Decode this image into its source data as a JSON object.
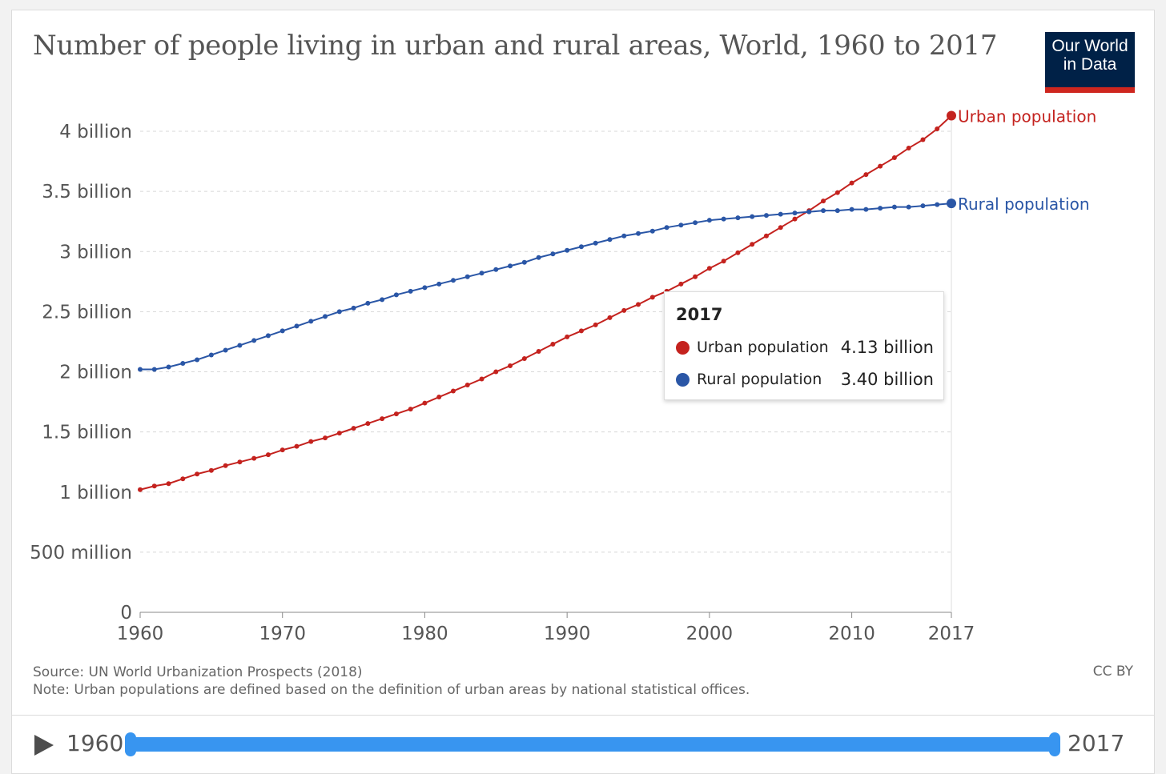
{
  "title": "Number of people living in urban and rural areas, World, 1960 to 2017",
  "logo": {
    "line1": "Our World",
    "line2": "in Data"
  },
  "colors": {
    "urban": "#c4221e",
    "rural": "#2a56a6",
    "grid": "#d8d8d8",
    "axis": "#555555",
    "accent": "#3895f0"
  },
  "chart_data": {
    "type": "line",
    "title": "Number of people living in urban and rural areas, World, 1960 to 2017",
    "xlabel": "",
    "ylabel": "",
    "xlim": [
      1960,
      2017
    ],
    "ylim": [
      0,
      4000000000
    ],
    "x_ticks": [
      1960,
      1970,
      1980,
      1990,
      2000,
      2010,
      2017
    ],
    "y_ticks": [
      {
        "value": 0,
        "label": "0"
      },
      {
        "value": 500000000,
        "label": "500 million"
      },
      {
        "value": 1000000000,
        "label": "1 billion"
      },
      {
        "value": 1500000000,
        "label": "1.5 billion"
      },
      {
        "value": 2000000000,
        "label": "2 billion"
      },
      {
        "value": 2500000000,
        "label": "2.5 billion"
      },
      {
        "value": 3000000000,
        "label": "3 billion"
      },
      {
        "value": 3500000000,
        "label": "3.5 billion"
      },
      {
        "value": 4000000000,
        "label": "4 billion"
      }
    ],
    "grid": true,
    "x": [
      1960,
      1961,
      1962,
      1963,
      1964,
      1965,
      1966,
      1967,
      1968,
      1969,
      1970,
      1971,
      1972,
      1973,
      1974,
      1975,
      1976,
      1977,
      1978,
      1979,
      1980,
      1981,
      1982,
      1983,
      1984,
      1985,
      1986,
      1987,
      1988,
      1989,
      1990,
      1991,
      1992,
      1993,
      1994,
      1995,
      1996,
      1997,
      1998,
      1999,
      2000,
      2001,
      2002,
      2003,
      2004,
      2005,
      2006,
      2007,
      2008,
      2009,
      2010,
      2011,
      2012,
      2013,
      2014,
      2015,
      2016,
      2017
    ],
    "series": [
      {
        "name": "Urban population",
        "color": "#c4221e",
        "values": [
          1.02,
          1.05,
          1.07,
          1.11,
          1.15,
          1.18,
          1.22,
          1.25,
          1.28,
          1.31,
          1.35,
          1.38,
          1.42,
          1.45,
          1.49,
          1.53,
          1.57,
          1.61,
          1.65,
          1.69,
          1.74,
          1.79,
          1.84,
          1.89,
          1.94,
          2.0,
          2.05,
          2.11,
          2.17,
          2.23,
          2.29,
          2.34,
          2.39,
          2.45,
          2.51,
          2.56,
          2.62,
          2.67,
          2.73,
          2.79,
          2.86,
          2.92,
          2.99,
          3.06,
          3.13,
          3.2,
          3.27,
          3.34,
          3.42,
          3.49,
          3.57,
          3.64,
          3.71,
          3.78,
          3.86,
          3.93,
          4.02,
          4.13
        ]
      },
      {
        "name": "Rural population",
        "color": "#2a56a6",
        "values": [
          2.02,
          2.02,
          2.04,
          2.07,
          2.1,
          2.14,
          2.18,
          2.22,
          2.26,
          2.3,
          2.34,
          2.38,
          2.42,
          2.46,
          2.5,
          2.53,
          2.57,
          2.6,
          2.64,
          2.67,
          2.7,
          2.73,
          2.76,
          2.79,
          2.82,
          2.85,
          2.88,
          2.91,
          2.95,
          2.98,
          3.01,
          3.04,
          3.07,
          3.1,
          3.13,
          3.15,
          3.17,
          3.2,
          3.22,
          3.24,
          3.26,
          3.27,
          3.28,
          3.29,
          3.3,
          3.31,
          3.32,
          3.33,
          3.34,
          3.34,
          3.35,
          3.35,
          3.36,
          3.37,
          3.37,
          3.38,
          3.39,
          3.4
        ]
      }
    ],
    "values_unit": "billion",
    "end_labels": [
      "Urban population",
      "Rural population"
    ]
  },
  "tooltip": {
    "year": "2017",
    "rows": [
      {
        "name": "Urban population",
        "value": "4.13 billion"
      },
      {
        "name": "Rural population",
        "value": "3.40 billion"
      }
    ]
  },
  "footer": {
    "source": "Source: UN World Urbanization Prospects (2018)",
    "note": "Note: Urban populations are defined based on the definition of urban areas by national statistical offices.",
    "license": "CC BY"
  },
  "timeline": {
    "start": "1960",
    "end": "2017",
    "play_icon": "play-icon"
  }
}
